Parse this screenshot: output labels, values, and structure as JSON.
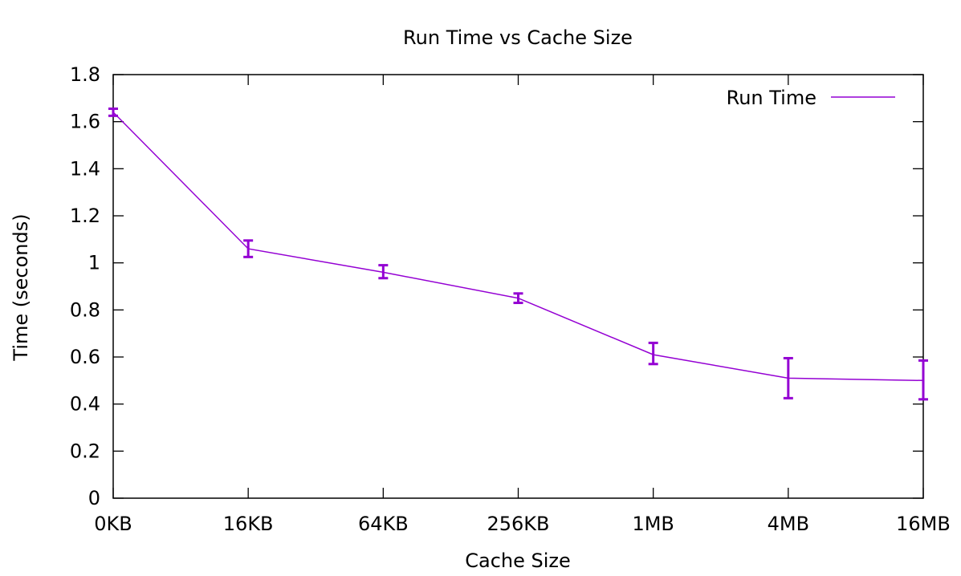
{
  "chart_data": {
    "type": "line",
    "title": "Run Time vs Cache Size",
    "xlabel": "Cache Size",
    "ylabel": "Time (seconds)",
    "categories": [
      "0KB",
      "16KB",
      "64KB",
      "256KB",
      "1MB",
      "4MB",
      "16MB"
    ],
    "ylim": [
      0,
      1.8
    ],
    "yticks": [
      0,
      0.2,
      0.4,
      0.6,
      0.8,
      1,
      1.2,
      1.4,
      1.6,
      1.8
    ],
    "ytick_labels": [
      "0",
      "0.2",
      "0.4",
      "0.6",
      "0.8",
      "1",
      "1.2",
      "1.4",
      "1.6",
      "1.8"
    ],
    "grid": false,
    "legend_position": "top-right",
    "series": [
      {
        "name": "Run Time",
        "color": "#9400d3",
        "values": [
          1.64,
          1.06,
          0.96,
          0.85,
          0.61,
          0.51,
          0.5
        ],
        "error_low": [
          1.625,
          1.025,
          0.935,
          0.83,
          0.57,
          0.425,
          0.42
        ],
        "error_high": [
          1.655,
          1.095,
          0.99,
          0.87,
          0.66,
          0.595,
          0.585
        ]
      }
    ]
  }
}
